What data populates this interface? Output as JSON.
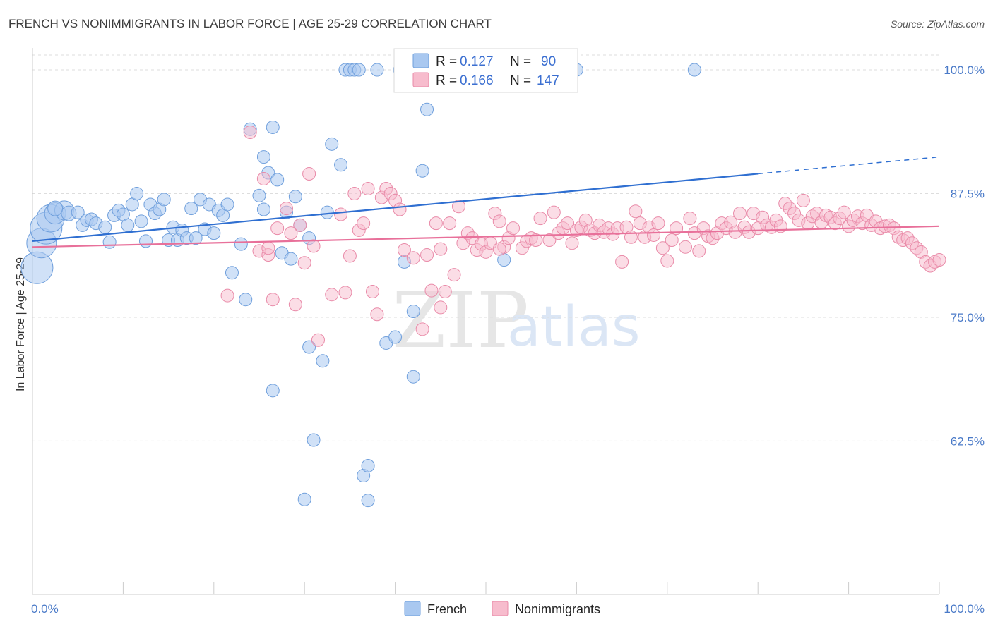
{
  "header": {
    "title": "FRENCH VS NONIMMIGRANTS IN LABOR FORCE | AGE 25-29 CORRELATION CHART",
    "source": "Source: ZipAtlas.com"
  },
  "watermark": {
    "zip": "ZIP",
    "atlas": "atlas"
  },
  "legend": {
    "french": {
      "r_label": "R =",
      "r_value": "0.127",
      "n_label": "N =",
      "n_value": "90"
    },
    "nonimmigrants": {
      "r_label": "R =",
      "r_value": "0.166",
      "n_label": "N =",
      "n_value": "147"
    }
  },
  "colors": {
    "french_fill": "#a9c8f0",
    "french_stroke": "#6f9fdc",
    "french_line": "#2f6fd1",
    "nonimm_fill": "#f7bccd",
    "nonimm_stroke": "#e98aa8",
    "nonimm_line": "#e8709a",
    "grid": "#dddddd",
    "tick_text": "#4a7ac8"
  },
  "chart_data": {
    "type": "scatter",
    "title": "FRENCH VS NONIMMIGRANTS IN LABOR FORCE | AGE 25-29 CORRELATION CHART",
    "xlabel": "",
    "ylabel": "In Labor Force | Age 25-29",
    "xlim": [
      0,
      100
    ],
    "ylim": [
      47.0,
      101.5
    ],
    "x_tick_labels": [
      "0.0%",
      "100.0%"
    ],
    "y_ticks": [
      100.0,
      87.5,
      75.0,
      62.5
    ],
    "y_tick_labels": [
      "100.0%",
      "87.5%",
      "75.0%",
      "62.5%"
    ],
    "grid": "horizontal dashed",
    "legend_position": "top-center",
    "series": [
      {
        "name": "French",
        "r": 0.127,
        "n": 90,
        "trend": {
          "x0": 0,
          "y0": 82.7,
          "x1": 80,
          "y1": 89.5,
          "dashed_to_x": 100,
          "dashed_to_y": 91.2
        },
        "points": [
          [
            0.5,
            80.0
          ],
          [
            1.0,
            82.5
          ],
          [
            1.5,
            84.0
          ],
          [
            2.0,
            85.0
          ],
          [
            2.5,
            85.5
          ],
          [
            3.5,
            85.8
          ],
          [
            4.0,
            85.5
          ],
          [
            5.0,
            85.6
          ],
          [
            5.5,
            84.3
          ],
          [
            6.0,
            84.8
          ],
          [
            6.5,
            84.9
          ],
          [
            7.0,
            84.5
          ],
          [
            8.0,
            84.1
          ],
          [
            8.5,
            82.6
          ],
          [
            9.0,
            85.3
          ],
          [
            9.5,
            85.8
          ],
          [
            10.0,
            85.4
          ],
          [
            10.5,
            84.3
          ],
          [
            11.0,
            86.4
          ],
          [
            11.5,
            87.5
          ],
          [
            12.0,
            84.7
          ],
          [
            12.5,
            82.7
          ],
          [
            13.0,
            86.4
          ],
          [
            13.5,
            85.5
          ],
          [
            14.0,
            85.9
          ],
          [
            14.5,
            86.9
          ],
          [
            15.0,
            82.8
          ],
          [
            15.5,
            84.1
          ],
          [
            16.0,
            82.8
          ],
          [
            16.5,
            83.8
          ],
          [
            17.0,
            83.0
          ],
          [
            17.5,
            86.0
          ],
          [
            18.0,
            83.0
          ],
          [
            18.5,
            86.9
          ],
          [
            19.0,
            83.9
          ],
          [
            19.5,
            86.4
          ],
          [
            20.0,
            83.5
          ],
          [
            20.5,
            85.8
          ],
          [
            21.0,
            85.3
          ],
          [
            21.5,
            86.4
          ],
          [
            22.0,
            79.5
          ],
          [
            23.0,
            82.4
          ],
          [
            23.5,
            76.8
          ],
          [
            24.0,
            94.0
          ],
          [
            25.0,
            87.3
          ],
          [
            25.5,
            85.9
          ],
          [
            25.5,
            91.2
          ],
          [
            26.0,
            89.6
          ],
          [
            26.5,
            67.6
          ],
          [
            26.5,
            94.2
          ],
          [
            27.0,
            88.9
          ],
          [
            27.5,
            81.5
          ],
          [
            28.0,
            85.6
          ],
          [
            28.5,
            80.9
          ],
          [
            29.0,
            87.2
          ],
          [
            29.5,
            84.3
          ],
          [
            30.0,
            56.6
          ],
          [
            30.5,
            72.0
          ],
          [
            30.5,
            83.0
          ],
          [
            31.0,
            62.6
          ],
          [
            32.0,
            70.6
          ],
          [
            32.5,
            85.6
          ],
          [
            33.0,
            92.5
          ],
          [
            34.0,
            90.4
          ],
          [
            34.5,
            100.0
          ],
          [
            35.0,
            100.0
          ],
          [
            35.5,
            100.0
          ],
          [
            36.0,
            100.0
          ],
          [
            36.5,
            59.0
          ],
          [
            37.0,
            60.0
          ],
          [
            37.0,
            56.5
          ],
          [
            38.0,
            100.0
          ],
          [
            39.0,
            72.4
          ],
          [
            40.0,
            73.0
          ],
          [
            40.5,
            100.0
          ],
          [
            41.0,
            80.6
          ],
          [
            42.0,
            100.0
          ],
          [
            42.0,
            75.6
          ],
          [
            42.0,
            69.0
          ],
          [
            43.0,
            89.8
          ],
          [
            43.5,
            96.0
          ],
          [
            44.0,
            100.0
          ],
          [
            45.0,
            100.0
          ],
          [
            46.0,
            100.0
          ],
          [
            48.0,
            100.0
          ],
          [
            52.0,
            80.8
          ],
          [
            56.0,
            100.0
          ],
          [
            60.0,
            100.0
          ],
          [
            73.0,
            100.0
          ],
          [
            2.5,
            86.0
          ]
        ],
        "sizes": [
          30,
          28,
          30,
          26,
          20,
          18,
          14,
          12,
          12,
          12,
          12,
          12,
          12,
          12,
          12,
          12,
          12,
          12,
          12,
          12,
          12,
          12,
          12,
          12,
          12,
          12,
          12,
          12,
          12,
          12,
          12,
          12,
          12,
          12,
          12,
          12,
          12,
          12,
          12,
          12,
          12,
          12,
          12,
          12,
          12,
          12,
          12,
          12,
          12,
          12,
          12,
          12,
          12,
          12,
          12,
          12,
          12,
          12,
          12,
          12,
          12,
          12,
          12,
          12,
          12,
          12,
          12,
          12,
          12,
          12,
          12,
          12,
          12,
          12,
          12,
          12,
          12,
          12,
          12,
          12,
          12,
          12,
          12,
          12,
          12,
          12,
          12,
          12,
          12,
          14
        ]
      },
      {
        "name": "Nonimmigrants",
        "r": 0.166,
        "n": 147,
        "trend": {
          "x0": 0,
          "y0": 82.1,
          "x1": 100,
          "y1": 84.2
        },
        "points": [
          [
            21.5,
            77.2
          ],
          [
            24.0,
            93.7
          ],
          [
            25.0,
            81.7
          ],
          [
            25.5,
            89.0
          ],
          [
            26.0,
            81.3
          ],
          [
            26.5,
            76.8
          ],
          [
            27.0,
            84.0
          ],
          [
            28.0,
            86.0
          ],
          [
            29.0,
            76.3
          ],
          [
            29.5,
            84.3
          ],
          [
            30.0,
            80.5
          ],
          [
            30.5,
            89.5
          ],
          [
            31.0,
            82.2
          ],
          [
            31.5,
            72.7
          ],
          [
            33.0,
            77.3
          ],
          [
            34.0,
            85.4
          ],
          [
            35.0,
            81.2
          ],
          [
            35.5,
            87.5
          ],
          [
            36.0,
            83.8
          ],
          [
            37.0,
            88.0
          ],
          [
            37.5,
            77.6
          ],
          [
            38.0,
            75.3
          ],
          [
            38.5,
            87.1
          ],
          [
            39.0,
            88.0
          ],
          [
            39.5,
            87.5
          ],
          [
            40.0,
            86.8
          ],
          [
            40.5,
            85.9
          ],
          [
            41.0,
            81.8
          ],
          [
            42.0,
            81.0
          ],
          [
            43.0,
            73.8
          ],
          [
            43.5,
            81.3
          ],
          [
            44.0,
            77.7
          ],
          [
            44.5,
            84.5
          ],
          [
            45.0,
            81.9
          ],
          [
            45.5,
            77.6
          ],
          [
            46.0,
            84.5
          ],
          [
            46.5,
            79.3
          ],
          [
            47.0,
            86.2
          ],
          [
            47.5,
            82.5
          ],
          [
            48.0,
            83.5
          ],
          [
            48.5,
            83.0
          ],
          [
            49.0,
            81.8
          ],
          [
            49.5,
            82.4
          ],
          [
            50.0,
            81.6
          ],
          [
            50.5,
            82.5
          ],
          [
            51.0,
            85.5
          ],
          [
            51.5,
            84.7
          ],
          [
            52.0,
            82.1
          ],
          [
            52.5,
            83.0
          ],
          [
            53.0,
            84.0
          ],
          [
            54.0,
            82.0
          ],
          [
            54.5,
            82.7
          ],
          [
            55.0,
            83.0
          ],
          [
            55.5,
            82.8
          ],
          [
            56.0,
            85.0
          ],
          [
            57.0,
            82.8
          ],
          [
            57.5,
            85.6
          ],
          [
            58.0,
            83.5
          ],
          [
            58.5,
            84.0
          ],
          [
            59.0,
            84.5
          ],
          [
            59.5,
            82.5
          ],
          [
            60.0,
            83.8
          ],
          [
            60.5,
            84.1
          ],
          [
            61.0,
            84.8
          ],
          [
            61.5,
            83.8
          ],
          [
            62.0,
            83.5
          ],
          [
            62.5,
            84.3
          ],
          [
            63.0,
            83.6
          ],
          [
            63.5,
            84.0
          ],
          [
            64.0,
            83.4
          ],
          [
            64.5,
            84.0
          ],
          [
            65.0,
            80.6
          ],
          [
            65.5,
            84.1
          ],
          [
            66.0,
            83.1
          ],
          [
            66.5,
            85.7
          ],
          [
            67.0,
            84.5
          ],
          [
            67.5,
            83.1
          ],
          [
            68.0,
            84.1
          ],
          [
            68.5,
            83.3
          ],
          [
            69.0,
            84.5
          ],
          [
            69.5,
            82.0
          ],
          [
            70.0,
            80.7
          ],
          [
            70.5,
            82.8
          ],
          [
            71.0,
            84.0
          ],
          [
            72.0,
            82.1
          ],
          [
            72.5,
            85.0
          ],
          [
            73.0,
            83.5
          ],
          [
            73.5,
            81.7
          ],
          [
            74.0,
            84.0
          ],
          [
            74.5,
            83.2
          ],
          [
            75.0,
            83.0
          ],
          [
            75.5,
            83.5
          ],
          [
            76.0,
            84.5
          ],
          [
            76.5,
            84.0
          ],
          [
            77.0,
            84.6
          ],
          [
            77.5,
            83.6
          ],
          [
            78.0,
            85.5
          ],
          [
            78.5,
            84.1
          ],
          [
            79.0,
            83.6
          ],
          [
            79.5,
            85.5
          ],
          [
            80.0,
            84.0
          ],
          [
            80.5,
            85.1
          ],
          [
            81.0,
            84.3
          ],
          [
            81.5,
            84.1
          ],
          [
            82.0,
            84.8
          ],
          [
            82.5,
            84.2
          ],
          [
            83.0,
            86.5
          ],
          [
            83.5,
            86.0
          ],
          [
            84.0,
            85.5
          ],
          [
            84.5,
            84.8
          ],
          [
            85.0,
            86.8
          ],
          [
            85.5,
            84.5
          ],
          [
            86.0,
            85.2
          ],
          [
            86.5,
            85.5
          ],
          [
            87.0,
            84.6
          ],
          [
            87.5,
            85.3
          ],
          [
            88.0,
            85.1
          ],
          [
            88.5,
            84.5
          ],
          [
            89.0,
            85.0
          ],
          [
            89.5,
            85.6
          ],
          [
            90.0,
            84.2
          ],
          [
            90.5,
            84.8
          ],
          [
            91.0,
            85.2
          ],
          [
            91.5,
            84.5
          ],
          [
            92.0,
            85.3
          ],
          [
            92.5,
            84.3
          ],
          [
            93.0,
            84.7
          ],
          [
            93.5,
            84.0
          ],
          [
            94.0,
            84.2
          ],
          [
            94.5,
            84.3
          ],
          [
            95.0,
            84.0
          ],
          [
            95.5,
            83.1
          ],
          [
            96.0,
            82.8
          ],
          [
            96.5,
            83.0
          ],
          [
            97.0,
            82.5
          ],
          [
            97.5,
            82.0
          ],
          [
            98.0,
            81.6
          ],
          [
            98.5,
            80.6
          ],
          [
            99.0,
            80.2
          ],
          [
            99.5,
            80.6
          ],
          [
            100.0,
            80.8
          ],
          [
            34.5,
            77.5
          ],
          [
            45.0,
            76.0
          ],
          [
            26.0,
            82.0
          ],
          [
            28.5,
            83.5
          ],
          [
            36.5,
            84.5
          ],
          [
            51.5,
            81.9
          ]
        ]
      }
    ]
  },
  "bottom_legend": {
    "french": "French",
    "nonimmigrants": "Nonimmigrants"
  }
}
